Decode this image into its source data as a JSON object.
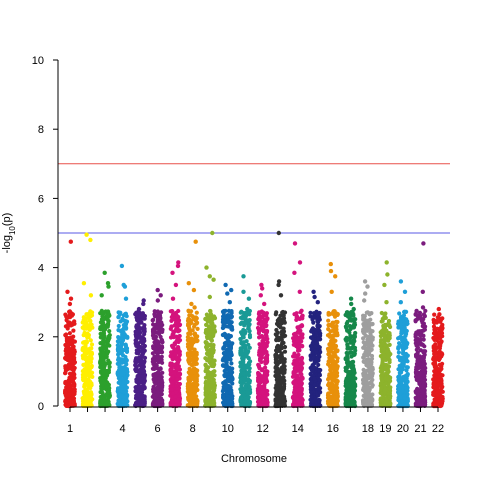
{
  "chart_data": {
    "type": "scatter",
    "subtype": "manhattan",
    "title": "",
    "xlabel": "Chromosome",
    "ylabel": "-log10(p)",
    "ylim": [
      0,
      10
    ],
    "yticks": [
      0,
      2,
      4,
      6,
      8,
      10
    ],
    "grid": false,
    "legend": "none",
    "chromosomes": [
      {
        "chr": "1",
        "label": "1",
        "color": "#e41a1c",
        "max": 4.75,
        "tops": [
          4.75,
          3.3,
          3.1,
          2.95
        ]
      },
      {
        "chr": "2",
        "label": "",
        "color": "#ffef00",
        "max": 4.95,
        "tops": [
          4.95,
          4.8,
          3.55,
          3.2
        ]
      },
      {
        "chr": "3",
        "label": "",
        "color": "#2ca02c",
        "max": 3.85,
        "tops": [
          3.85,
          3.55,
          3.45,
          3.2
        ]
      },
      {
        "chr": "4",
        "label": "4",
        "color": "#1e9fd8",
        "max": 4.05,
        "tops": [
          4.05,
          3.5,
          3.45,
          3.1
        ]
      },
      {
        "chr": "5",
        "label": "",
        "color": "#4b1f86",
        "max": 3.05,
        "tops": [
          3.05,
          2.95,
          2.8
        ]
      },
      {
        "chr": "6",
        "label": "6",
        "color": "#7b1c7e",
        "max": 3.35,
        "tops": [
          3.35,
          3.2,
          3.05
        ]
      },
      {
        "chr": "7",
        "label": "",
        "color": "#d4137d",
        "max": 4.15,
        "tops": [
          4.15,
          4.05,
          3.85,
          3.5,
          3.1
        ]
      },
      {
        "chr": "8",
        "label": "8",
        "color": "#e8900a",
        "max": 4.75,
        "tops": [
          4.75,
          3.55,
          3.35,
          2.95,
          2.85
        ]
      },
      {
        "chr": "9",
        "label": "",
        "color": "#8db32c",
        "max": 5.0,
        "tops": [
          5.0,
          4.0,
          3.75,
          3.65,
          3.15
        ]
      },
      {
        "chr": "10",
        "label": "10",
        "color": "#1069b2",
        "max": 3.5,
        "tops": [
          3.5,
          3.35,
          3.25,
          3.0
        ]
      },
      {
        "chr": "11",
        "label": "",
        "color": "#1a9a96",
        "max": 3.75,
        "tops": [
          3.75,
          3.3,
          3.1,
          2.8
        ]
      },
      {
        "chr": "12",
        "label": "12",
        "color": "#d4137d",
        "max": 3.5,
        "tops": [
          3.5,
          3.4,
          3.2,
          2.95
        ]
      },
      {
        "chr": "13",
        "label": "",
        "color": "#333333",
        "max": 5.0,
        "tops": [
          5.0,
          3.6,
          3.5,
          3.2
        ]
      },
      {
        "chr": "14",
        "label": "14",
        "color": "#d4137d",
        "max": 4.7,
        "tops": [
          4.7,
          4.15,
          3.85,
          3.3
        ]
      },
      {
        "chr": "15",
        "label": "",
        "color": "#23237e",
        "max": 3.3,
        "tops": [
          3.3,
          3.15,
          3.0
        ]
      },
      {
        "chr": "16",
        "label": "16",
        "color": "#e8900a",
        "max": 4.1,
        "tops": [
          4.1,
          3.9,
          3.75,
          3.3
        ]
      },
      {
        "chr": "17",
        "label": "",
        "color": "#16884a",
        "max": 3.1,
        "tops": [
          3.1,
          2.95,
          2.8
        ]
      },
      {
        "chr": "18",
        "label": "18",
        "color": "#9e9e9e",
        "max": 3.6,
        "tops": [
          3.6,
          3.45,
          3.25,
          3.05
        ]
      },
      {
        "chr": "19",
        "label": "19",
        "color": "#8db32c",
        "max": 4.15,
        "tops": [
          4.15,
          3.8,
          3.5,
          3.0
        ]
      },
      {
        "chr": "20",
        "label": "20",
        "color": "#1e9fd8",
        "max": 3.6,
        "tops": [
          3.6,
          3.3,
          3.0
        ]
      },
      {
        "chr": "21",
        "label": "21",
        "color": "#7b1c7e",
        "max": 4.7,
        "tops": [
          4.7,
          3.3,
          2.85,
          2.75
        ]
      },
      {
        "chr": "22",
        "label": "22",
        "color": "#e41a1c",
        "max": 2.8,
        "tops": [
          2.8,
          2.65,
          2.45
        ]
      }
    ],
    "reference_lines": [
      {
        "y": 7.0,
        "color": "#e8504a"
      },
      {
        "y": 5.0,
        "color": "#5a5ae6"
      }
    ]
  }
}
